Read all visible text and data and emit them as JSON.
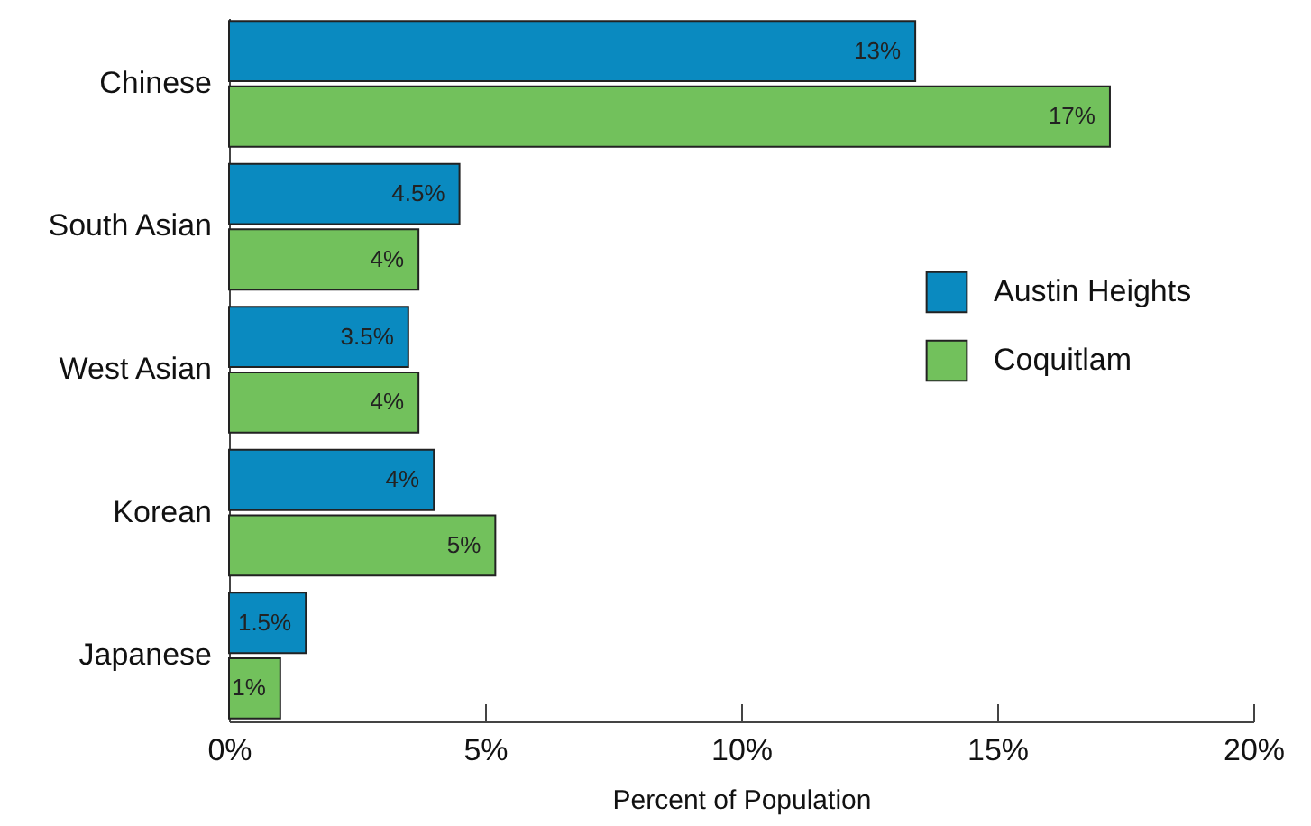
{
  "chart_data": {
    "type": "bar",
    "orientation": "horizontal",
    "xlabel": "Percent of Population",
    "categories": [
      "Chinese",
      "South Asian",
      "West Asian",
      "Korean",
      "Japanese"
    ],
    "series": [
      {
        "name": "Austin Heights",
        "color": "#0a8ac0",
        "values": [
          13.4,
          4.5,
          3.5,
          4.0,
          1.5
        ],
        "value_labels": [
          "13%",
          "4.5%",
          "3.5%",
          "4%",
          "1.5%"
        ]
      },
      {
        "name": "Coquitlam",
        "color": "#72c15c",
        "values": [
          17.2,
          3.7,
          3.7,
          5.2,
          1.0
        ],
        "value_labels": [
          "17%",
          "4%",
          "4%",
          "5%",
          "1%"
        ]
      }
    ],
    "xlim": [
      0,
      20
    ],
    "xticks": [
      {
        "value": 0,
        "label": "0%"
      },
      {
        "value": 5,
        "label": "5%"
      },
      {
        "value": 10,
        "label": "10%"
      },
      {
        "value": 15,
        "label": "15%"
      },
      {
        "value": 20,
        "label": "20%"
      }
    ],
    "grid": false,
    "legend": "right"
  }
}
